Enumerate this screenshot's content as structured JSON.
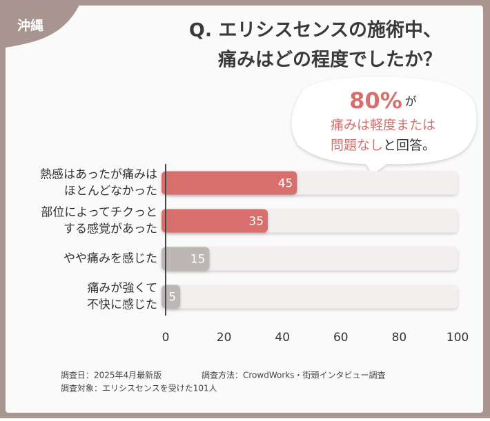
{
  "tag": "沖縄",
  "chart_data": {
    "type": "hbar",
    "title": [
      "Q. エリシスセンスの施術中、",
      "痛みはどの程度でしたか？"
    ],
    "annotation": {
      "highlight": "80%",
      "particle": "が",
      "line2": "痛みは軽度または",
      "line3_highlight": "問題なし",
      "line3_rest": "と回答。"
    },
    "categories": [
      [
        "熱感はあったが痛みは",
        "ほとんどなかった"
      ],
      [
        "部位によってチクっと",
        "する感覚があった"
      ],
      [
        "やや痛みを感じた"
      ],
      [
        "痛みが強くて",
        "不快に感じた"
      ]
    ],
    "values": [
      45,
      35,
      15,
      5
    ],
    "colors": [
      "#d7706d",
      "#d7706d",
      "#bcb6b5",
      "#bcb6b5"
    ],
    "track_color": "#f3efef",
    "xlim": [
      0,
      100
    ],
    "xticks": [
      0,
      20,
      40,
      60,
      80,
      100
    ]
  },
  "footnotes": [
    "調査日：2025年4月最新版",
    "調査方法：CrowdWorks・街頭インタビュー調査",
    "調査対象：エリシスセンスを受けた101人"
  ]
}
